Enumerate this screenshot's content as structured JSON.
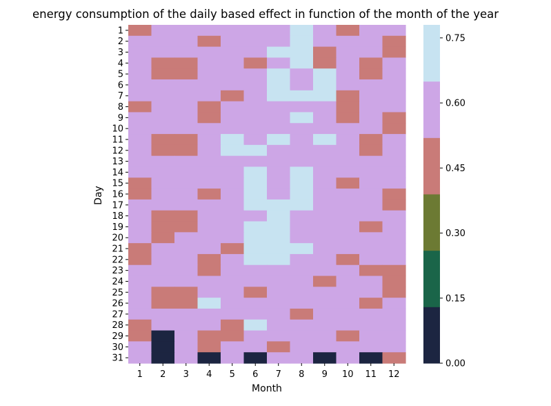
{
  "chart_data": {
    "type": "heatmap",
    "title": "energy consumption of the daily based effect in function of the month of the year",
    "xlabel": "Month",
    "ylabel": "Day",
    "x_categories": [
      "1",
      "2",
      "3",
      "4",
      "5",
      "6",
      "7",
      "8",
      "9",
      "10",
      "11",
      "12"
    ],
    "y_categories": [
      "1",
      "2",
      "3",
      "4",
      "5",
      "6",
      "7",
      "8",
      "9",
      "10",
      "11",
      "12",
      "13",
      "14",
      "15",
      "16",
      "17",
      "18",
      "19",
      "20",
      "21",
      "22",
      "23",
      "24",
      "25",
      "26",
      "27",
      "28",
      "29",
      "30",
      "31"
    ],
    "colorbar": {
      "ticks": [
        "0.00",
        "0.15",
        "0.30",
        "0.45",
        "0.60",
        "0.75"
      ],
      "tick_values": [
        0.0,
        0.15,
        0.3,
        0.45,
        0.6,
        0.75
      ],
      "range": [
        0.0,
        0.78
      ],
      "bands": [
        {
          "from": 0.0,
          "to": 0.13,
          "color": "#1c2541"
        },
        {
          "from": 0.13,
          "to": 0.26,
          "color": "#1a6549"
        },
        {
          "from": 0.26,
          "to": 0.39,
          "color": "#6c7a33"
        },
        {
          "from": 0.39,
          "to": 0.52,
          "color": "#c97b78"
        },
        {
          "from": 0.52,
          "to": 0.65,
          "color": "#cda6e6"
        },
        {
          "from": 0.65,
          "to": 0.78,
          "color": "#c7e3f1"
        }
      ]
    },
    "value_levels": {
      "D": 0.07,
      "R": 0.45,
      "P": 0.6,
      "L": 0.72
    },
    "rows": [
      "RPPPPPPLPRPP",
      "PPPRPPPLPPPR",
      "PPPPPPLLRPPR",
      "PRRPPRPLRPRP",
      "PRRPPPLPLPRP",
      "PPPPPPLPLPPP",
      "PPPPRPLLLRPP",
      "RPPRPPPPPRPP",
      "PPPRPPPLPRPR",
      "PPPPPPPPPPPR",
      "PRRPLPLPLPRP",
      "PRRPLLPPPPRP",
      "PPPPPPPPPPPP",
      "PPPPPLPLPPPP",
      "RPPPPLPLPRPP",
      "RPPRPLPLPPPR",
      "PPPPPLLLPPPR",
      "PRRPPPLPPPPP",
      "PRRPPLLPPPRP",
      "PRPPPLLPPPPP",
      "RPPPRLLLPPPP",
      "RPPRPLLPPRPP",
      "PPPRPPPPPPRR",
      "PPPPPPPPRPPR",
      "PRRPPRPPPPPR",
      "PRRLPPPPPPRP",
      "PPPPPPPRPPPP",
      "RPPPRLPPPPPP",
      "RDPRRPPPPRPP",
      "PDPRPPRPPPPP",
      "PDPDPDPPDPDR"
    ]
  }
}
